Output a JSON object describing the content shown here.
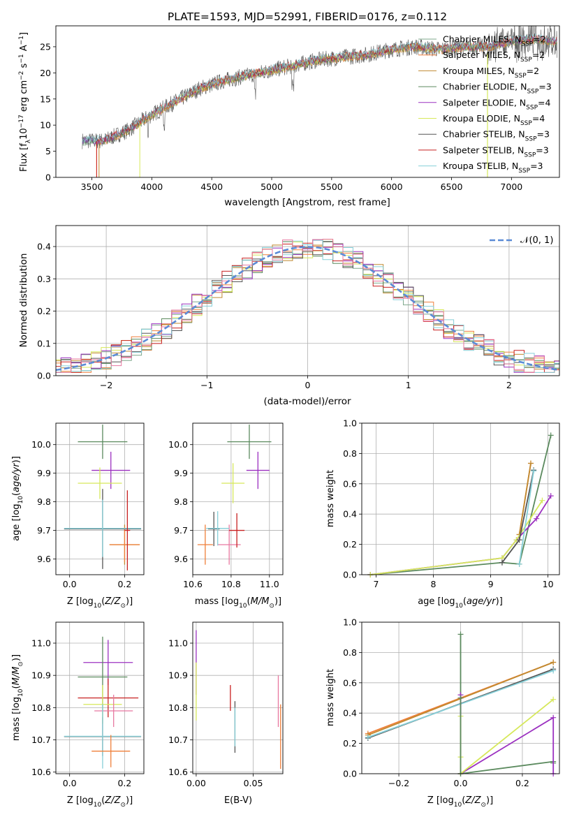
{
  "title": "PLATE=1593, MJD=52991, FIBERID=0176, z=0.112",
  "colors": {
    "Chabrier MILES": "#7fa88c",
    "Salpeter MILES": "#ef7f3a",
    "Kroupa MILES": "#c08a30",
    "Chabrier ELODIE": "#5b8a5e",
    "Salpeter ELODIE": "#9b30c0",
    "Kroupa ELODIE": "#d6e85a",
    "Chabrier STELIB": "#555555",
    "Salpeter STELIB": "#c82020",
    "Kroupa STELIB": "#86cfd8",
    "alt_pink": "#e878a0",
    "gaussian": "#5b8bd6"
  },
  "chart_data": [
    {
      "id": "spectrum",
      "type": "line",
      "title": "PLATE=1593, MJD=52991, FIBERID=0176, z=0.112",
      "xlabel": "wavelength [Angstrom, rest frame]",
      "ylabel": "Flux [f_λ10^-17 erg cm^-2 s^-1 A^-1]",
      "xlim": [
        3200,
        7400
      ],
      "ylim": [
        0,
        29
      ],
      "xticks": [
        3500,
        4000,
        4500,
        5000,
        5500,
        6000,
        6500,
        7000
      ],
      "yticks": [
        0,
        5,
        10,
        15,
        20,
        25
      ],
      "legend_position": "right",
      "continuum_x": [
        3420,
        3600,
        3800,
        4000,
        4200,
        4400,
        4600,
        4800,
        5000,
        5200,
        5400,
        5600,
        5800,
        6000,
        6200,
        6400,
        6600,
        6800,
        7000,
        7200,
        7380
      ],
      "continuum_y": [
        7,
        7,
        9,
        12,
        14.5,
        17,
        18.5,
        19.5,
        20.5,
        21.5,
        22.5,
        23,
        23.5,
        24.5,
        25,
        24.5,
        25,
        25,
        26,
        26.5,
        26
      ],
      "series": [
        {
          "name": "Chabrier MILES, N_SSP=2"
        },
        {
          "name": "Salpeter MILES, N_SSP=2"
        },
        {
          "name": "Kroupa MILES, N_SSP=2"
        },
        {
          "name": "Chabrier ELODIE, N_SSP=3"
        },
        {
          "name": "Salpeter ELODIE, N_SSP=4"
        },
        {
          "name": "Kroupa ELODIE, N_SSP=4"
        },
        {
          "name": "Chabrier STELIB, N_SSP=3"
        },
        {
          "name": "Salpeter STELIB, N_SSP=3"
        },
        {
          "name": "Kroupa STELIB, N_SSP=3"
        }
      ]
    },
    {
      "id": "residuals",
      "type": "histogram",
      "xlabel": "(data-model)/error",
      "ylabel": "Normed distribution",
      "xlim": [
        -2.5,
        2.5
      ],
      "ylim": [
        0,
        0.465
      ],
      "xticks": [
        -2,
        -1,
        0,
        1,
        2
      ],
      "yticks": [
        0.0,
        0.1,
        0.2,
        0.3,
        0.4
      ],
      "grid": true,
      "bin_width": 0.1,
      "legend": "N(0,1)",
      "legend_position": "top-right"
    },
    {
      "id": "age_vs_Z",
      "type": "errorbar",
      "xlabel": "Z [log10(Z/Z⊙)]",
      "ylabel": "age [log10(age/yr)]",
      "xlim": [
        -0.05,
        0.27
      ],
      "ylim": [
        9.545,
        10.075
      ],
      "xticks": [
        0.0,
        0.2
      ],
      "yticks": [
        9.6,
        9.7,
        9.8,
        9.9,
        10.0
      ],
      "grid": true,
      "points": [
        {
          "x": 0.12,
          "y": 10.01,
          "xerr": 0.09,
          "yerr": 0.06,
          "color": "#5b8a5e"
        },
        {
          "x": 0.15,
          "y": 9.91,
          "xerr": 0.07,
          "yerr": 0.065,
          "color": "#9b30c0"
        },
        {
          "x": 0.11,
          "y": 9.865,
          "xerr": 0.08,
          "yerr": 0.055,
          "color": "#d6e85a"
        },
        {
          "x": 0.2,
          "y": 9.65,
          "xerr": 0.055,
          "yerr": 0.07,
          "color": "#c08a30"
        },
        {
          "x": 0.2,
          "y": 9.65,
          "xerr": 0.055,
          "yerr": 0.06,
          "color": "#ef7f3a"
        },
        {
          "x": 0.12,
          "y": 9.705,
          "xerr": 0.14,
          "yerr": 0.14,
          "color": "#555555"
        },
        {
          "x": 0.12,
          "y": 9.707,
          "xerr": 0.14,
          "yerr": 0.1,
          "color": "#86cfd8"
        },
        {
          "x": 0.21,
          "y": 9.7,
          "xerr": 0.01,
          "yerr": 0.14,
          "color": "#c82020"
        }
      ]
    },
    {
      "id": "age_vs_mass",
      "type": "errorbar",
      "xlabel": "mass [log10(M/M⊙)]",
      "ylabel": "",
      "xlim": [
        10.6,
        11.07
      ],
      "ylim": [
        9.545,
        10.075
      ],
      "xticks": [
        10.6,
        10.8,
        11.0
      ],
      "yticks": [
        9.6,
        9.7,
        9.8,
        9.9,
        10.0
      ],
      "grid": true,
      "points": [
        {
          "x": 10.895,
          "y": 10.01,
          "xerr": 0.115,
          "yerr": 0.06,
          "color": "#5b8a5e"
        },
        {
          "x": 10.94,
          "y": 9.91,
          "xerr": 0.06,
          "yerr": 0.065,
          "color": "#9b30c0"
        },
        {
          "x": 10.81,
          "y": 9.865,
          "xerr": 0.06,
          "yerr": 0.07,
          "color": "#d6e85a"
        },
        {
          "x": 10.79,
          "y": 9.65,
          "xerr": 0.06,
          "yerr": 0.07,
          "color": "#e878a0"
        },
        {
          "x": 10.665,
          "y": 9.65,
          "xerr": 0.04,
          "yerr": 0.07,
          "color": "#ef7f3a"
        },
        {
          "x": 10.71,
          "y": 9.705,
          "xerr": 0.03,
          "yerr": 0.06,
          "color": "#555555"
        },
        {
          "x": 10.73,
          "y": 9.707,
          "xerr": 0.06,
          "yerr": 0.06,
          "color": "#86cfd8"
        },
        {
          "x": 10.83,
          "y": 9.7,
          "xerr": 0.04,
          "yerr": 0.06,
          "color": "#c82020"
        }
      ]
    },
    {
      "id": "weight_vs_age",
      "type": "line",
      "xlabel": "age [log10(age/yr)]",
      "ylabel": "mass weight",
      "xlim": [
        6.75,
        10.2
      ],
      "ylim": [
        0,
        1.0
      ],
      "xticks": [
        7,
        8,
        9,
        10
      ],
      "yticks": [
        0.0,
        0.2,
        0.4,
        0.6,
        0.8,
        1.0
      ],
      "grid": true,
      "series": [
        {
          "x": [
            9.5,
            9.7
          ],
          "y": [
            0.265,
            0.735
          ],
          "color": "#ef7f3a"
        },
        {
          "x": [
            9.5,
            9.7
          ],
          "y": [
            0.265,
            0.735
          ],
          "color": "#c08a30"
        },
        {
          "x": [
            6.9,
            9.2,
            9.5,
            10.05
          ],
          "y": [
            0.0,
            0.08,
            0.07,
            0.92
          ],
          "color": "#5b8a5e"
        },
        {
          "x": [
            6.9,
            9.2,
            9.45,
            9.8,
            10.05
          ],
          "y": [
            0.0,
            0.11,
            0.23,
            0.37,
            0.52
          ],
          "color": "#9b30c0"
        },
        {
          "x": [
            6.9,
            9.2,
            9.45,
            9.9
          ],
          "y": [
            0.0,
            0.11,
            0.23,
            0.49
          ],
          "color": "#d6e85a"
        },
        {
          "x": [
            9.2,
            9.5,
            9.75
          ],
          "y": [
            0.08,
            0.23,
            0.69
          ],
          "color": "#555555"
        },
        {
          "x": [
            9.5,
            9.75
          ],
          "y": [
            0.07,
            0.685
          ],
          "color": "#86cfd8"
        }
      ]
    },
    {
      "id": "mass_vs_Z",
      "type": "errorbar",
      "xlabel": "Z [log10(Z/Z⊙)]",
      "ylabel": "mass [log10(M/M⊙)]",
      "xlim": [
        -0.05,
        0.27
      ],
      "ylim": [
        10.595,
        11.065
      ],
      "xticks": [
        0.0,
        0.2
      ],
      "yticks": [
        10.6,
        10.7,
        10.8,
        10.9,
        11.0
      ],
      "grid": true,
      "points": [
        {
          "x": 0.14,
          "y": 10.94,
          "xerr": 0.09,
          "yerr": 0.07,
          "color": "#9b30c0"
        },
        {
          "x": 0.12,
          "y": 10.895,
          "xerr": 0.09,
          "yerr": 0.125,
          "color": "#5b8a5e"
        },
        {
          "x": 0.14,
          "y": 10.83,
          "xerr": 0.11,
          "yerr": 0.06,
          "color": "#c82020"
        },
        {
          "x": 0.12,
          "y": 10.81,
          "xerr": 0.07,
          "yerr": 0.06,
          "color": "#d6e85a"
        },
        {
          "x": 0.16,
          "y": 10.79,
          "xerr": 0.07,
          "yerr": 0.05,
          "color": "#e878a0"
        },
        {
          "x": 0.12,
          "y": 10.71,
          "xerr": 0.14,
          "yerr": 0.06,
          "color": "#555555"
        },
        {
          "x": 0.12,
          "y": 10.711,
          "xerr": 0.14,
          "yerr": 0.1,
          "color": "#86cfd8"
        },
        {
          "x": 0.15,
          "y": 10.665,
          "xerr": 0.07,
          "yerr": 0.05,
          "color": "#ef7f3a"
        }
      ]
    },
    {
      "id": "mass_vs_ebv",
      "type": "errorbar",
      "xlabel": "E(B-V)",
      "ylabel": "",
      "xlim": [
        -0.003,
        0.076
      ],
      "ylim": [
        10.595,
        11.065
      ],
      "xticks": [
        0.0,
        0.05
      ],
      "yticks": [
        10.6,
        10.7,
        10.8,
        10.9,
        11.0
      ],
      "grid": true,
      "points": [
        {
          "x": 0.0,
          "y": 10.94,
          "xerr": 0,
          "yerr": 0.1,
          "color": "#9b30c0"
        },
        {
          "x": 0.0,
          "y": 10.85,
          "xerr": 0,
          "yerr": 0.09,
          "color": "#d6e85a"
        },
        {
          "x": 0.03,
          "y": 10.83,
          "xerr": 0,
          "yerr": 0.04,
          "color": "#c82020"
        },
        {
          "x": 0.034,
          "y": 10.74,
          "xerr": 0,
          "yerr": 0.08,
          "color": "#555555"
        },
        {
          "x": 0.034,
          "y": 10.74,
          "xerr": 0,
          "yerr": 0.06,
          "color": "#86cfd8"
        },
        {
          "x": 0.072,
          "y": 10.82,
          "xerr": 0,
          "yerr": 0.08,
          "color": "#e878a0"
        },
        {
          "x": 0.074,
          "y": 10.71,
          "xerr": 0,
          "yerr": 0.1,
          "color": "#ef7f3a"
        }
      ]
    },
    {
      "id": "weight_vs_Z",
      "type": "line",
      "xlabel": "Z [log10(Z/Z⊙)]",
      "ylabel": "mass weight",
      "xlim": [
        -0.32,
        0.32
      ],
      "ylim": [
        0,
        1.0
      ],
      "xticks": [
        -0.2,
        0.0,
        0.2
      ],
      "yticks": [
        0.0,
        0.2,
        0.4,
        0.6,
        0.8,
        1.0
      ],
      "grid": true,
      "series": [
        {
          "x": [
            -0.3,
            0.3
          ],
          "y": [
            0.265,
            0.735
          ],
          "color": "#ef7f3a"
        },
        {
          "x": [
            -0.3,
            0.3
          ],
          "y": [
            0.255,
            0.735
          ],
          "color": "#c08a30"
        },
        {
          "x": [
            -0.3,
            0.3
          ],
          "y": [
            0.235,
            0.69
          ],
          "color": "#555555"
        },
        {
          "x": [
            -0.3,
            0.3
          ],
          "y": [
            0.24,
            0.68
          ],
          "color": "#86cfd8"
        },
        {
          "x": [
            0.0,
            0.0,
            0.3,
            0.3
          ],
          "y": [
            0.92,
            0.0,
            0.08,
            0.07
          ],
          "color": "#5b8a5e"
        },
        {
          "x": [
            0.0,
            0.0,
            0.3,
            0.3
          ],
          "y": [
            0.52,
            0.0,
            0.37,
            0.0
          ],
          "color": "#9b30c0"
        },
        {
          "x": [
            0.0,
            0.0,
            0.0,
            0.3
          ],
          "y": [
            0.38,
            0.11,
            0.0,
            0.49
          ],
          "color": "#d6e85a"
        },
        {
          "x": [
            0.0,
            0.0
          ],
          "y": [
            0.0,
            0.5
          ],
          "color": "#5b8a5e"
        }
      ]
    }
  ]
}
